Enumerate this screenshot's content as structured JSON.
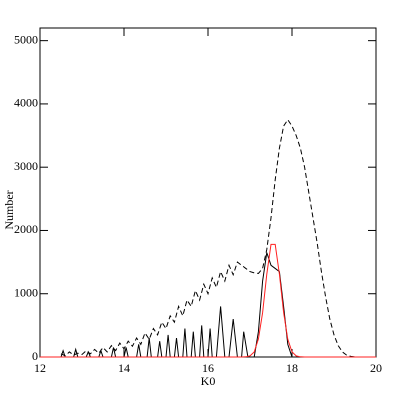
{
  "chart_data": {
    "type": "line",
    "xlabel": "K0",
    "ylabel": "Number",
    "xlim": [
      12,
      20
    ],
    "ylim": [
      0,
      5200
    ],
    "xticks": [
      12,
      14,
      16,
      18,
      20
    ],
    "yticks": [
      0,
      1000,
      2000,
      3000,
      4000,
      5000
    ],
    "series": [
      {
        "color": "#000000",
        "dashed": true,
        "x": [
          12.5,
          12.6,
          12.7,
          12.8,
          12.9,
          13.0,
          13.1,
          13.2,
          13.3,
          13.4,
          13.5,
          13.6,
          13.7,
          13.8,
          13.9,
          14.0,
          14.1,
          14.2,
          14.3,
          14.4,
          14.5,
          14.6,
          14.7,
          14.8,
          14.9,
          15.0,
          15.1,
          15.2,
          15.3,
          15.4,
          15.5,
          15.6,
          15.7,
          15.8,
          15.9,
          16.0,
          16.1,
          16.2,
          16.3,
          16.4,
          16.5,
          16.6,
          16.7,
          16.8,
          16.9,
          17.0,
          17.1,
          17.2,
          17.3,
          17.4,
          17.5,
          17.6,
          17.7,
          17.8,
          17.9,
          18.0,
          18.1,
          18.2,
          18.3,
          18.4,
          18.5,
          18.6,
          18.7,
          18.8,
          18.9,
          19.0,
          19.1,
          19.2,
          19.3,
          19.4,
          19.5,
          19.6,
          19.8,
          20.0
        ],
        "values": [
          50,
          20,
          80,
          30,
          60,
          40,
          100,
          50,
          120,
          60,
          150,
          80,
          180,
          100,
          220,
          130,
          250,
          170,
          300,
          200,
          380,
          280,
          450,
          350,
          550,
          450,
          650,
          550,
          800,
          650,
          900,
          800,
          1050,
          900,
          1150,
          1000,
          1250,
          1100,
          1350,
          1200,
          1450,
          1300,
          1500,
          1450,
          1400,
          1350,
          1330,
          1320,
          1400,
          1700,
          2200,
          2800,
          3300,
          3650,
          3750,
          3650,
          3500,
          3300,
          3000,
          2600,
          2200,
          1800,
          1350,
          950,
          600,
          350,
          180,
          80,
          30,
          10,
          0,
          0,
          0,
          0
        ]
      },
      {
        "color": "#000000",
        "dashed": false,
        "x": [
          12.5,
          12.55,
          12.6,
          12.8,
          12.85,
          12.9,
          13.1,
          13.15,
          13.2,
          13.4,
          13.45,
          13.5,
          13.7,
          13.75,
          13.8,
          14.0,
          14.05,
          14.1,
          14.3,
          14.35,
          14.4,
          14.55,
          14.6,
          14.65,
          14.8,
          14.85,
          14.9,
          15.0,
          15.05,
          15.1,
          15.2,
          15.25,
          15.3,
          15.4,
          15.45,
          15.5,
          15.6,
          15.65,
          15.7,
          15.8,
          15.85,
          15.9,
          16.0,
          16.05,
          16.1,
          16.2,
          16.3,
          16.4,
          16.5,
          16.6,
          16.7,
          16.8,
          16.85,
          16.95,
          17.1,
          17.2,
          17.3,
          17.4,
          17.5,
          17.6,
          17.7,
          17.8,
          17.9,
          18.0,
          18.2
        ],
        "values": [
          0,
          100,
          0,
          0,
          120,
          0,
          0,
          80,
          0,
          0,
          100,
          0,
          0,
          150,
          0,
          0,
          150,
          0,
          0,
          200,
          0,
          0,
          300,
          0,
          0,
          250,
          0,
          0,
          350,
          0,
          0,
          300,
          0,
          0,
          450,
          0,
          0,
          400,
          0,
          0,
          500,
          0,
          0,
          450,
          0,
          0,
          800,
          0,
          0,
          600,
          0,
          0,
          400,
          0,
          0,
          400,
          1200,
          1650,
          1450,
          1400,
          1350,
          800,
          200,
          0,
          0
        ]
      },
      {
        "color": "#ff2020",
        "dashed": false,
        "x": [
          12,
          16.8,
          16.9,
          17.0,
          17.1,
          17.2,
          17.3,
          17.4,
          17.5,
          17.6,
          17.7,
          17.8,
          17.9,
          18.0,
          18.1,
          18.2,
          18.3,
          20
        ],
        "values": [
          0,
          0,
          3,
          17,
          80,
          284,
          700,
          1310,
          1780,
          1780,
          1310,
          705,
          280,
          81,
          17,
          3,
          0,
          0
        ]
      }
    ]
  }
}
